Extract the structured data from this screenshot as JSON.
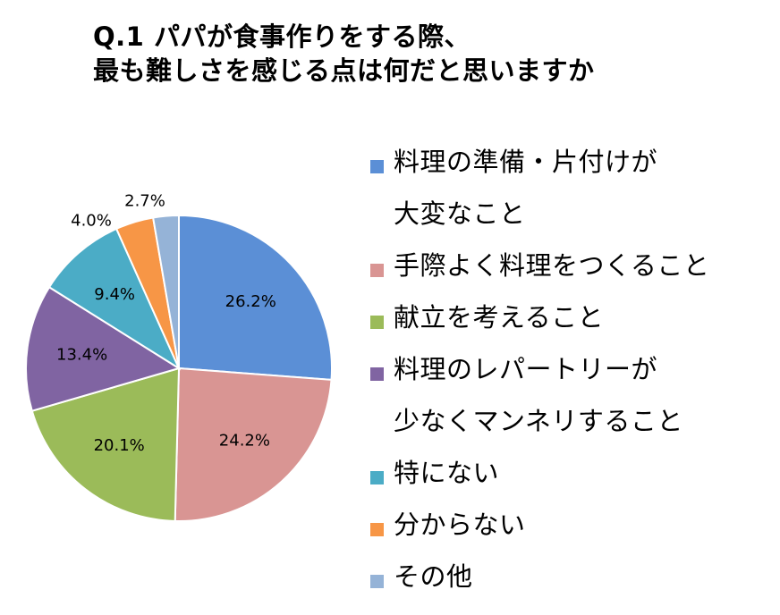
{
  "title": {
    "line1": "Q.1 パパが食事作りをする際、",
    "line2": "最も難しさを感じる点は何だと思いますか"
  },
  "chart_data": {
    "type": "pie",
    "title": "Q.1 パパが食事作りをする際、最も難しさを感じる点は何だと思いますか",
    "unit": "%",
    "slices": [
      {
        "label": "料理の準備・片付けが\n大変なこと",
        "value": 26.2,
        "display": "26.2%",
        "color": "#5b8fd6"
      },
      {
        "label": "手際よく料理をつくること",
        "value": 24.2,
        "display": "24.2%",
        "color": "#d99593"
      },
      {
        "label": "献立を考えること",
        "value": 20.1,
        "display": "20.1%",
        "color": "#9bbb59"
      },
      {
        "label": "料理のレパートリーが\n少なくマンネリすること",
        "value": 13.4,
        "display": "13.4%",
        "color": "#8064a2"
      },
      {
        "label": "特にない",
        "value": 9.4,
        "display": "9.4%",
        "color": "#4bacc6"
      },
      {
        "label": "分からない",
        "value": 4.0,
        "display": "4.0%",
        "color": "#f79646"
      },
      {
        "label": "その他",
        "value": 2.7,
        "display": "2.7%",
        "color": "#95b3d7"
      }
    ],
    "start_angle_deg": 0,
    "direction": "clockwise",
    "legend_position": "right"
  }
}
